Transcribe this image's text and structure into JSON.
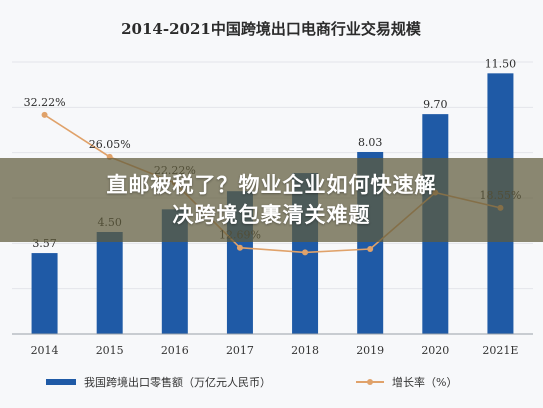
{
  "chart_data": {
    "type": "bar",
    "title": "2014-2021中国跨境出口电商行业交易规模",
    "categories": [
      "2014",
      "2015",
      "2016",
      "2017",
      "2018",
      "2019",
      "2020",
      "2021E"
    ],
    "series": [
      {
        "name": "我国跨境出口零售额（万亿元人民币）",
        "kind": "bar",
        "values": [
          3.57,
          4.5,
          5.5,
          6.3,
          7.1,
          8.03,
          9.7,
          11.5
        ],
        "labels": [
          "3.57",
          "4.50",
          "",
          "",
          "",
          "8.03",
          "9.70",
          "11.50"
        ],
        "color": "#1f5aa6"
      },
      {
        "name": "增长率（%）",
        "kind": "line",
        "values": [
          32.22,
          26.05,
          22.22,
          12.69,
          12.0,
          12.5,
          20.8,
          18.55
        ],
        "labels": [
          "32.22%",
          "26.05%",
          "22.22%",
          "12.69%",
          "",
          "",
          "",
          "18.55%"
        ],
        "color": "#e0a26a"
      }
    ],
    "ylim_bars": [
      0,
      12
    ],
    "ylim_rate": [
      0,
      40
    ],
    "grid": true,
    "legend": "bottom"
  },
  "overlay": {
    "line1": "直邮被税了？物业企业如何快速解",
    "line2": "决跨境包裹清关难题"
  }
}
